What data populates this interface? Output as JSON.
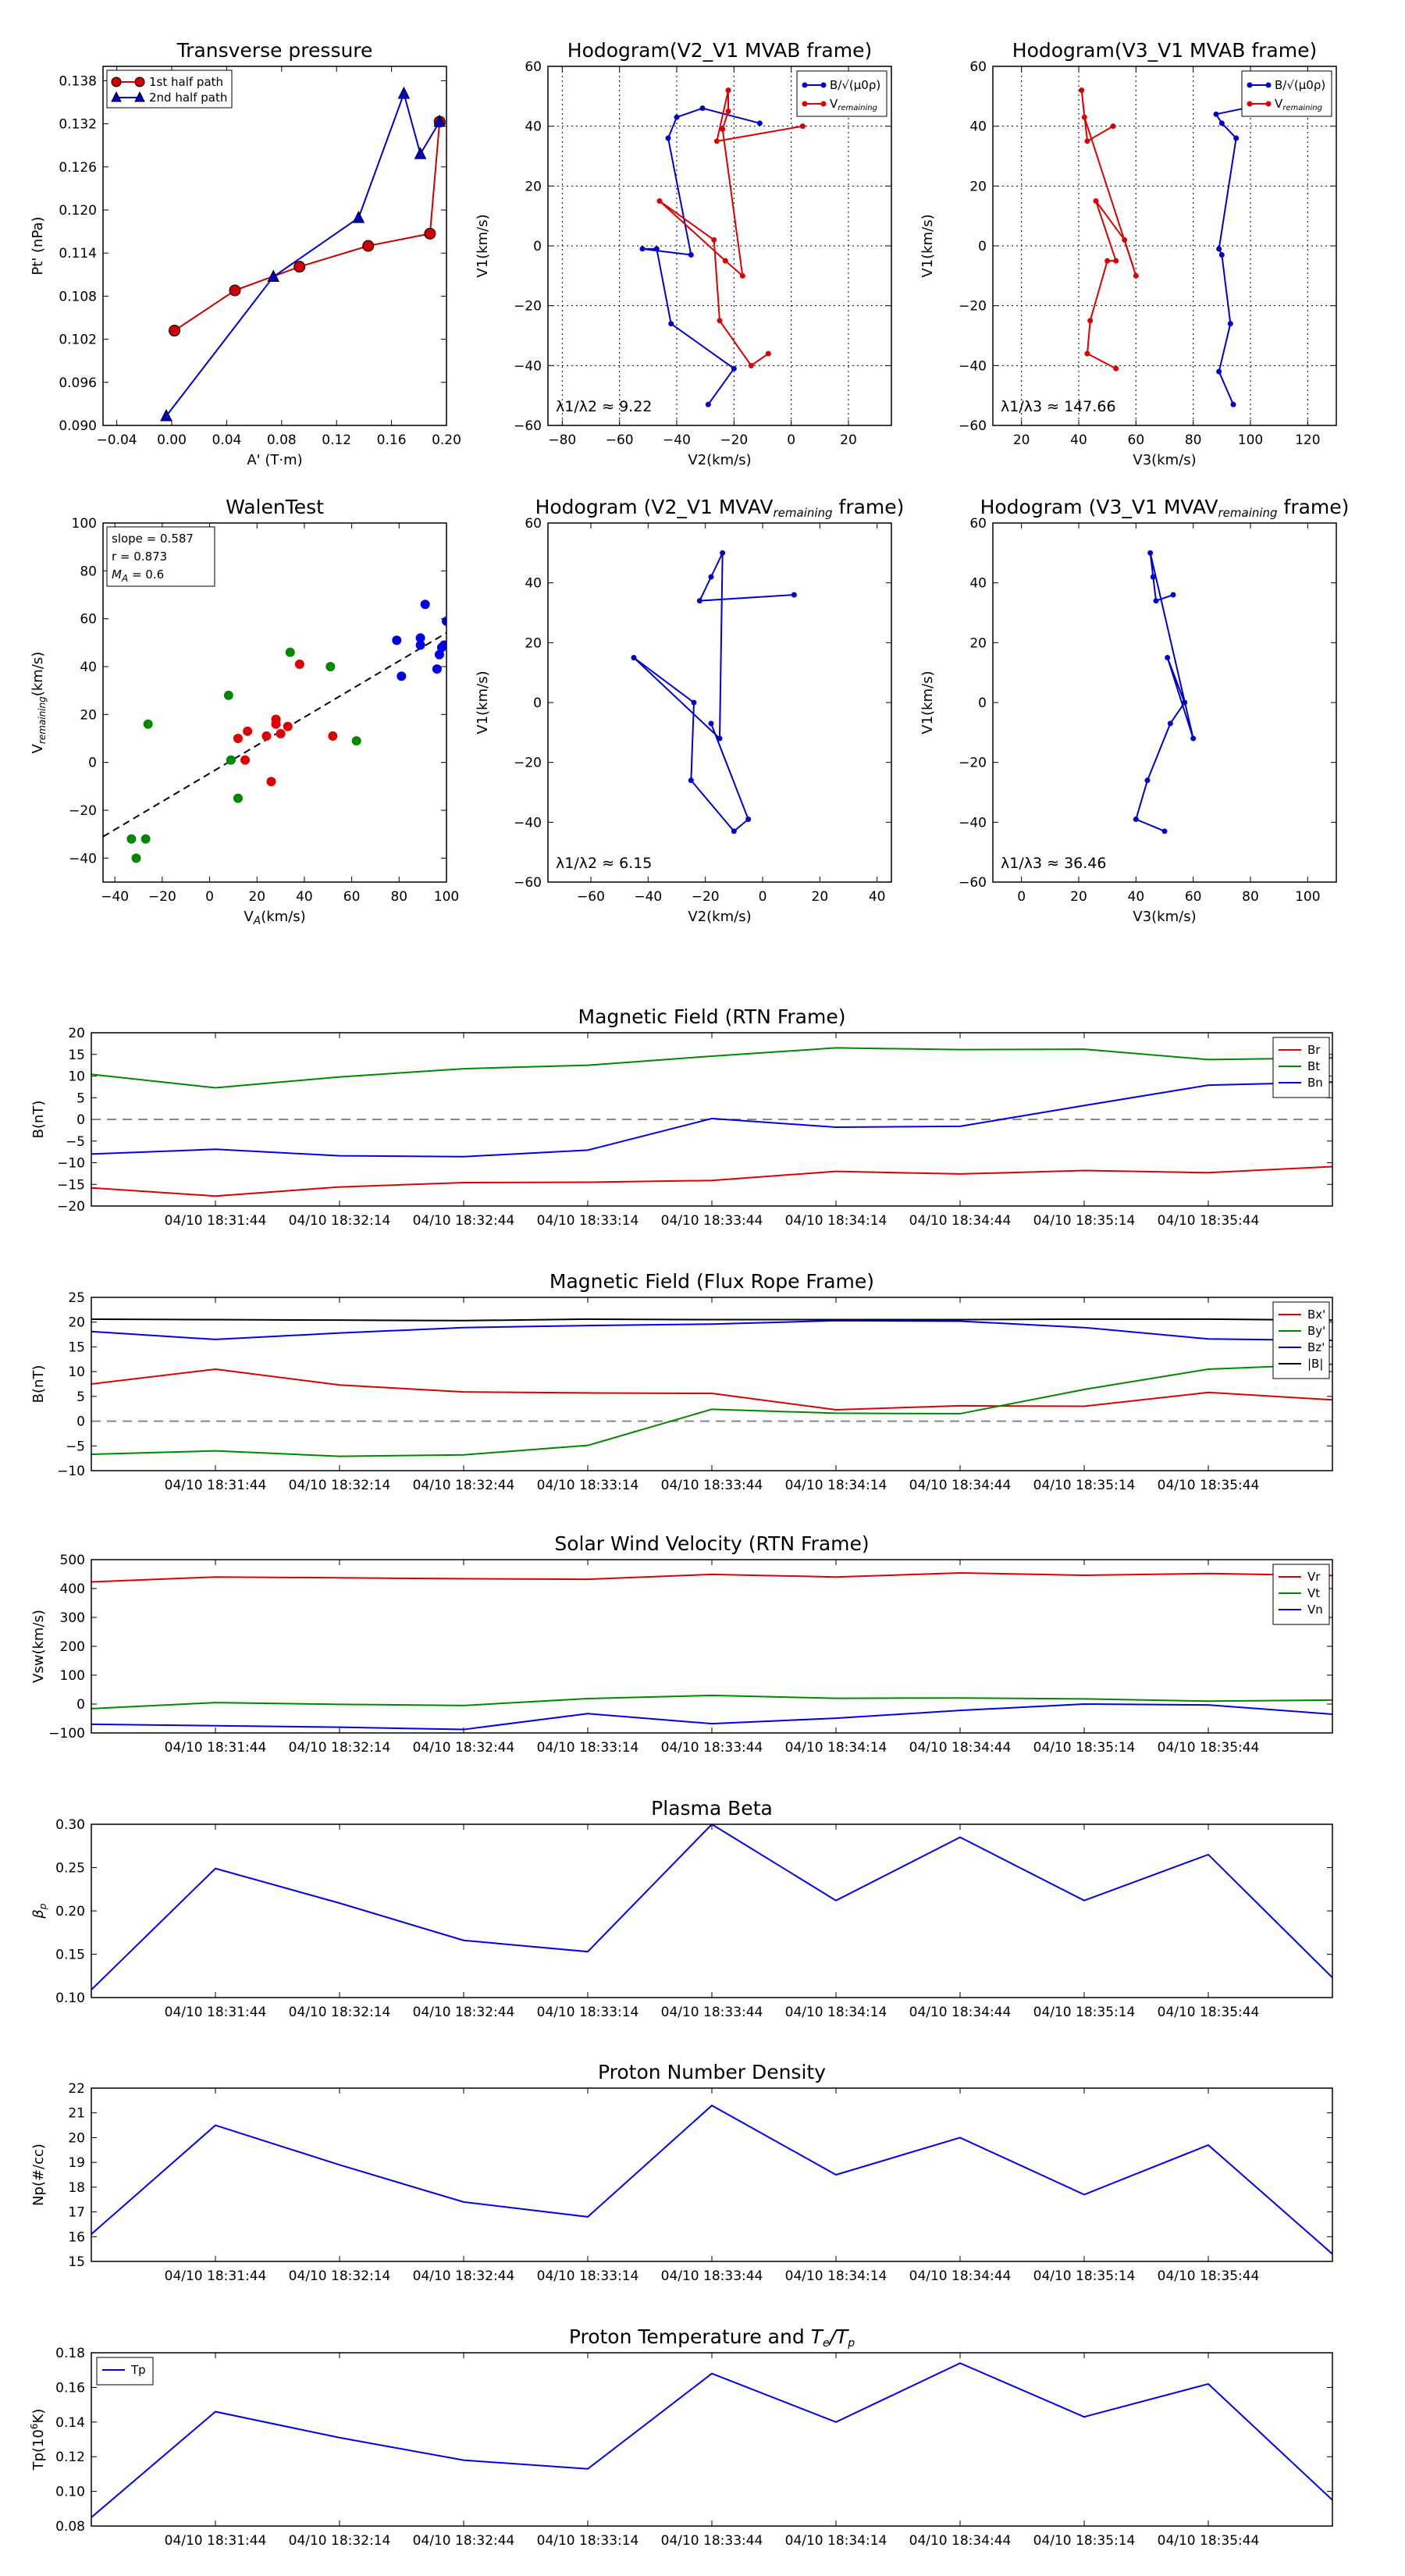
{
  "chart_data": [
    {
      "id": "transverse",
      "type": "line",
      "title": "Transverse pressure",
      "xlabel": "A' (T·m)",
      "ylabel": "Pt' (nPa)",
      "xlim": [
        -0.05,
        0.2
      ],
      "ylim": [
        0.09,
        0.14
      ],
      "xticks": [
        -0.04,
        0.0,
        0.04,
        0.08,
        0.12,
        0.16,
        0.2
      ],
      "xtick_labels": [
        "-0.04",
        "0.00",
        "0.04",
        "0.08",
        "0.12",
        "0.16",
        "0.20"
      ],
      "yticks": [
        0.09,
        0.096,
        0.102,
        0.108,
        0.114,
        0.12,
        0.126,
        0.132,
        0.138
      ],
      "ytick_labels": [
        "0.090",
        "0.096",
        "0.102",
        "0.108",
        "0.114",
        "0.120",
        "0.126",
        "0.132",
        "0.138"
      ],
      "legend": "top-left",
      "series": [
        {
          "name": "1st half path",
          "color": "#cc0000",
          "marker": "circle",
          "x": [
            0.002,
            0.046,
            0.093,
            0.143,
            0.188,
            0.195
          ],
          "y": [
            0.1032,
            0.1088,
            0.1121,
            0.115,
            0.1167,
            0.1323
          ]
        },
        {
          "name": "2nd half path",
          "color": "#0000cc",
          "marker": "triangle",
          "x": [
            -0.004,
            0.074,
            0.136,
            0.169,
            0.181,
            0.195
          ],
          "y": [
            0.0913,
            0.1107,
            0.1189,
            0.1362,
            0.1278,
            0.1323
          ]
        }
      ]
    },
    {
      "id": "hodo1",
      "type": "line",
      "title": "Hodogram(V2_V1 MVAB frame)",
      "xlabel": "V2(km/s)",
      "ylabel": "V1(km/s)",
      "xlim": [
        -85,
        35
      ],
      "ylim": [
        -60,
        60
      ],
      "xticks": [
        -80,
        -60,
        -40,
        -20,
        0,
        20
      ],
      "yticks": [
        -60,
        -40,
        -20,
        0,
        20,
        40,
        60
      ],
      "grid": true,
      "legend": "top-right",
      "annotation": "λ1/λ2 ≈ 9.22",
      "series": [
        {
          "name": "B/√(μ0ρ)",
          "color": "#0000cc",
          "x": [
            -11,
            -31,
            -40,
            -43,
            -35,
            -52,
            -47,
            -42,
            -20,
            -29
          ],
          "y": [
            41,
            46,
            43,
            36,
            -3,
            -1,
            -1,
            -26,
            -41,
            -53
          ]
        },
        {
          "name": "Vremaining",
          "color": "#dd0000",
          "x": [
            4,
            -26,
            -22,
            -22,
            -24,
            -17,
            -23,
            -46,
            -27,
            -25,
            -14,
            -8
          ],
          "y": [
            40,
            35,
            52,
            45,
            39,
            -10,
            -5,
            15,
            2,
            -25,
            -40,
            -36
          ]
        }
      ]
    },
    {
      "id": "hodo2",
      "type": "line",
      "title": "Hodogram(V3_V1 MVAB frame)",
      "xlabel": "V3(km/s)",
      "ylabel": "V1(km/s)",
      "xlim": [
        10,
        130
      ],
      "ylim": [
        -60,
        60
      ],
      "xticks": [
        20,
        40,
        60,
        80,
        100,
        120
      ],
      "yticks": [
        -60,
        -40,
        -20,
        0,
        20,
        40,
        60
      ],
      "grid": true,
      "legend": "top-right",
      "annotation": "λ1/λ3 ≈ 147.66",
      "series": [
        {
          "name": "B/√(μ0ρ)",
          "color": "#0000cc",
          "x": [
            98,
            88,
            90,
            95,
            89,
            90,
            93,
            89,
            94
          ],
          "y": [
            46,
            44,
            41,
            36,
            -1,
            -3,
            -26,
            -42,
            -53
          ]
        },
        {
          "name": "Vremaining",
          "color": "#dd0000",
          "x": [
            52,
            43,
            41,
            42,
            60,
            56,
            46,
            53,
            50,
            44,
            43,
            53
          ],
          "y": [
            40,
            35,
            52,
            43,
            -10,
            2,
            15,
            -5,
            -5,
            -25,
            -36,
            -41
          ]
        }
      ]
    },
    {
      "id": "walen",
      "type": "scatter",
      "title": "WalenTest",
      "xlabel": "V_A(km/s)",
      "ylabel": "V_remaining(km/s)",
      "xlim": [
        -45,
        100
      ],
      "ylim": [
        -50,
        100
      ],
      "xticks": [
        -40,
        -20,
        0,
        20,
        40,
        60,
        80,
        100
      ],
      "yticks": [
        -40,
        -20,
        0,
        20,
        40,
        60,
        80,
        100
      ],
      "legend_text": [
        "slope = 0.587",
        "r = 0.873",
        "M_A = 0.6"
      ],
      "fit": {
        "slope": 0.587,
        "intercept": -4.6
      },
      "series": [
        {
          "name": "blue",
          "color": "#0000ee",
          "x": [
            100,
            91,
            89,
            89,
            81,
            79,
            99,
            98,
            97,
            96
          ],
          "y": [
            59,
            66,
            52,
            49,
            36,
            51,
            49,
            48,
            45,
            39
          ]
        },
        {
          "name": "red",
          "color": "#dd0000",
          "x": [
            38,
            33,
            28,
            28,
            30,
            24,
            16,
            12,
            15,
            52,
            26
          ],
          "y": [
            41,
            15,
            18,
            16,
            12,
            11,
            13,
            10,
            1,
            11,
            -8
          ]
        },
        {
          "name": "green",
          "color": "#008800",
          "x": [
            34,
            51,
            8,
            9,
            62,
            12,
            -26,
            -33,
            -31,
            -27
          ],
          "y": [
            46,
            40,
            28,
            1,
            9,
            -15,
            16,
            -32,
            -40,
            -32
          ]
        }
      ]
    },
    {
      "id": "hodo3",
      "type": "line",
      "title": "Hodogram (V2_V1 MVAV_remaining frame)",
      "xlabel": "V2(km/s)",
      "ylabel": "V1(km/s)",
      "xlim": [
        -75,
        45
      ],
      "ylim": [
        -60,
        60
      ],
      "xticks": [
        -60,
        -40,
        -20,
        0,
        20,
        40
      ],
      "yticks": [
        -60,
        -40,
        -20,
        0,
        20,
        40,
        60
      ],
      "annotation": "λ1/λ2 ≈ 6.15",
      "series": [
        {
          "name": "B",
          "color": "#0000cc",
          "x": [
            11,
            -22,
            -18,
            -14,
            -15,
            -45,
            -24,
            -25,
            -10,
            -5,
            -18
          ],
          "y": [
            36,
            34,
            42,
            50,
            -12,
            15,
            0,
            -26,
            -43,
            -39,
            -7
          ]
        }
      ]
    },
    {
      "id": "hodo4",
      "type": "line",
      "title": "Hodogram (V3_V1 MVAV_remaining frame)",
      "xlabel": "V3(km/s)",
      "ylabel": "V1(km/s)",
      "xlim": [
        -10,
        110
      ],
      "ylim": [
        -60,
        60
      ],
      "xticks": [
        0,
        20,
        40,
        60,
        80,
        100
      ],
      "yticks": [
        -60,
        -40,
        -20,
        0,
        20,
        40,
        60
      ],
      "annotation": "λ1/λ3 ≈ 36.46",
      "series": [
        {
          "name": "B",
          "color": "#0000cc",
          "x": [
            53,
            47,
            46,
            45,
            60,
            51,
            57,
            52,
            44,
            40,
            50
          ],
          "y": [
            36,
            34,
            42,
            50,
            -12,
            15,
            0,
            -7,
            -26,
            -39,
            -43
          ]
        }
      ]
    },
    {
      "id": "mag_rtn",
      "type": "line",
      "title": "Magnetic Field (RTN Frame)",
      "ylabel": "B(nT)",
      "ylim": [
        -20,
        20
      ],
      "yticks": [
        -20,
        -15,
        -10,
        -5,
        0,
        5,
        10,
        15,
        20
      ],
      "ytick_labels": [
        "−20",
        "−15",
        "−10",
        "−5",
        "0",
        "5",
        "10",
        "15",
        "20"
      ],
      "zero_line": true,
      "legend": "top-right",
      "series": [
        {
          "name": "Br",
          "color": "#dd0000",
          "values": [
            -15.8,
            -17.7,
            -15.6,
            -14.6,
            -14.5,
            -14.1,
            -12.0,
            -12.6,
            -11.8,
            -12.3,
            -10.9
          ]
        },
        {
          "name": "Bt",
          "color": "#008800",
          "values": [
            10.4,
            7.3,
            9.8,
            11.7,
            12.5,
            14.6,
            16.5,
            16.1,
            16.2,
            13.8,
            14.2
          ]
        },
        {
          "name": "Bn",
          "color": "#0000ee",
          "values": [
            -8.0,
            -6.9,
            -8.4,
            -8.6,
            -7.1,
            0.2,
            -1.8,
            -1.6,
            3.2,
            7.9,
            8.6
          ]
        }
      ]
    },
    {
      "id": "mag_fr",
      "type": "line",
      "title": "Magnetic Field (Flux Rope Frame)",
      "ylabel": "B(nT)",
      "ylim": [
        -10,
        25
      ],
      "yticks": [
        -10,
        -5,
        0,
        5,
        10,
        15,
        20,
        25
      ],
      "ytick_labels": [
        "−10",
        "−5",
        "0",
        "5",
        "10",
        "15",
        "20",
        "25"
      ],
      "zero_line": true,
      "legend": "top-right",
      "series": [
        {
          "name": "Bx'",
          "color": "#dd0000",
          "values": [
            7.5,
            10.5,
            7.3,
            5.9,
            5.7,
            5.6,
            2.3,
            3.1,
            3.0,
            5.8,
            4.3
          ]
        },
        {
          "name": "By'",
          "color": "#008800",
          "values": [
            -6.7,
            -6.0,
            -7.1,
            -6.8,
            -4.9,
            2.4,
            1.6,
            1.5,
            6.4,
            10.5,
            11.5
          ]
        },
        {
          "name": "Bz'",
          "color": "#0000ee",
          "values": [
            18.1,
            16.5,
            17.8,
            18.9,
            19.3,
            19.6,
            20.3,
            20.2,
            18.9,
            16.6,
            16.3
          ]
        },
        {
          "name": "|B|",
          "color": "#000000",
          "values": [
            20.6,
            20.5,
            20.4,
            20.3,
            20.6,
            20.5,
            20.5,
            20.5,
            20.6,
            20.6,
            20.4
          ]
        }
      ]
    },
    {
      "id": "vsw",
      "type": "line",
      "title": "Solar Wind Velocity (RTN Frame)",
      "ylabel": "Vsw(km/s)",
      "ylim": [
        -100,
        500
      ],
      "yticks": [
        -100,
        0,
        100,
        200,
        300,
        400,
        500
      ],
      "ytick_labels": [
        "−100",
        "0",
        "100",
        "200",
        "300",
        "400",
        "500"
      ],
      "legend": "top-right",
      "series": [
        {
          "name": "Vr",
          "color": "#dd0000",
          "values": [
            423,
            440,
            437,
            434,
            432,
            449,
            440,
            454,
            446,
            452,
            445
          ]
        },
        {
          "name": "Vt",
          "color": "#008800",
          "values": [
            -16,
            5,
            -1,
            -5,
            19,
            30,
            20,
            21,
            18,
            10,
            14
          ]
        },
        {
          "name": "Vn",
          "color": "#0000ee",
          "values": [
            -70,
            -75,
            -80,
            -88,
            -33,
            -68,
            -49,
            -22,
            0,
            -3,
            -35
          ]
        }
      ]
    },
    {
      "id": "beta",
      "type": "line",
      "title": "Plasma Beta",
      "ylabel": "β_p",
      "ylim": [
        0.1,
        0.3
      ],
      "yticks": [
        0.1,
        0.15,
        0.2,
        0.25,
        0.3
      ],
      "ytick_labels": [
        "0.10",
        "0.15",
        "0.20",
        "0.25",
        "0.30"
      ],
      "series": [
        {
          "name": "beta",
          "color": "#0000ee",
          "values": [
            0.109,
            0.249,
            0.209,
            0.166,
            0.153,
            0.3,
            0.212,
            0.285,
            0.212,
            0.265,
            0.123
          ]
        }
      ]
    },
    {
      "id": "np",
      "type": "line",
      "title": "Proton Number Density",
      "ylabel": "Np(#/cc)",
      "ylim": [
        15,
        22
      ],
      "yticks": [
        15,
        16,
        17,
        18,
        19,
        20,
        21,
        22
      ],
      "ytick_labels": [
        "15",
        "16",
        "17",
        "18",
        "19",
        "20",
        "21",
        "22"
      ],
      "series": [
        {
          "name": "Np",
          "color": "#0000ee",
          "values": [
            16.1,
            20.5,
            18.9,
            17.4,
            16.8,
            21.3,
            18.5,
            20.0,
            17.7,
            19.7,
            15.3
          ]
        }
      ]
    },
    {
      "id": "tp",
      "type": "line",
      "title": "Proton Temperature and Te/Tp",
      "ylabel": "Tp(10^6 K)",
      "ylim": [
        0.08,
        0.18
      ],
      "yticks": [
        0.08,
        0.1,
        0.12,
        0.14,
        0.16,
        0.18
      ],
      "ytick_labels": [
        "0.08",
        "0.10",
        "0.12",
        "0.14",
        "0.16",
        "0.18"
      ],
      "legend": "top-left",
      "series": [
        {
          "name": "Tp",
          "color": "#0000ee",
          "values": [
            0.085,
            0.146,
            0.131,
            0.118,
            0.113,
            0.168,
            0.14,
            0.174,
            0.143,
            0.162,
            0.095
          ]
        }
      ]
    }
  ],
  "time_axis": {
    "labels": [
      "04/10 18:31:44",
      "04/10 18:32:14",
      "04/10 18:32:44",
      "04/10 18:33:14",
      "04/10 18:33:44",
      "04/10 18:34:14",
      "04/10 18:34:44",
      "04/10 18:35:14",
      "04/10 18:35:44"
    ],
    "label_indices": [
      1,
      2,
      3,
      4,
      5,
      6,
      7,
      8,
      9
    ],
    "n_points": 11
  }
}
